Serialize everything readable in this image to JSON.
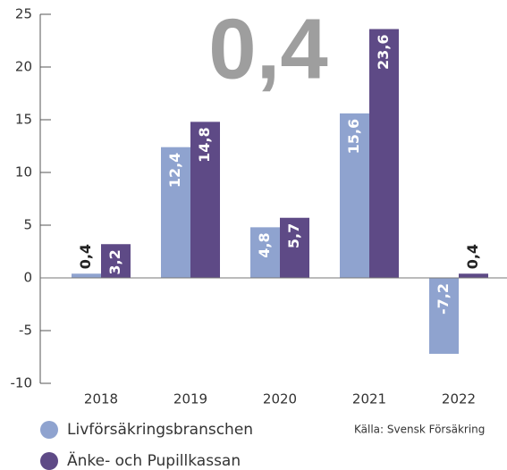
{
  "chart_data": {
    "type": "bar",
    "annotation": "0,4",
    "source": "Källa: Svensk Försäkring",
    "categories": [
      "2018",
      "2019",
      "2020",
      "2021",
      "2022"
    ],
    "series": [
      {
        "name": "Livförsäkringsbranschen",
        "color": "#8fa3cf",
        "values": [
          0.4,
          12.4,
          4.8,
          15.6,
          -7.2
        ],
        "value_labels": [
          "0,4",
          "12,4",
          "4,8",
          "15,6",
          "-7,2"
        ]
      },
      {
        "name": "Änke- och Pupillkassan",
        "color": "#5e4a86",
        "values": [
          3.2,
          14.8,
          5.7,
          23.6,
          0.4
        ],
        "value_labels": [
          "3,2",
          "14,8",
          "5,7",
          "23,6",
          "0,4"
        ]
      }
    ],
    "ylim": [
      -10,
      25
    ],
    "yticks": [
      -10,
      -5,
      0,
      5,
      10,
      15,
      20,
      25
    ]
  }
}
